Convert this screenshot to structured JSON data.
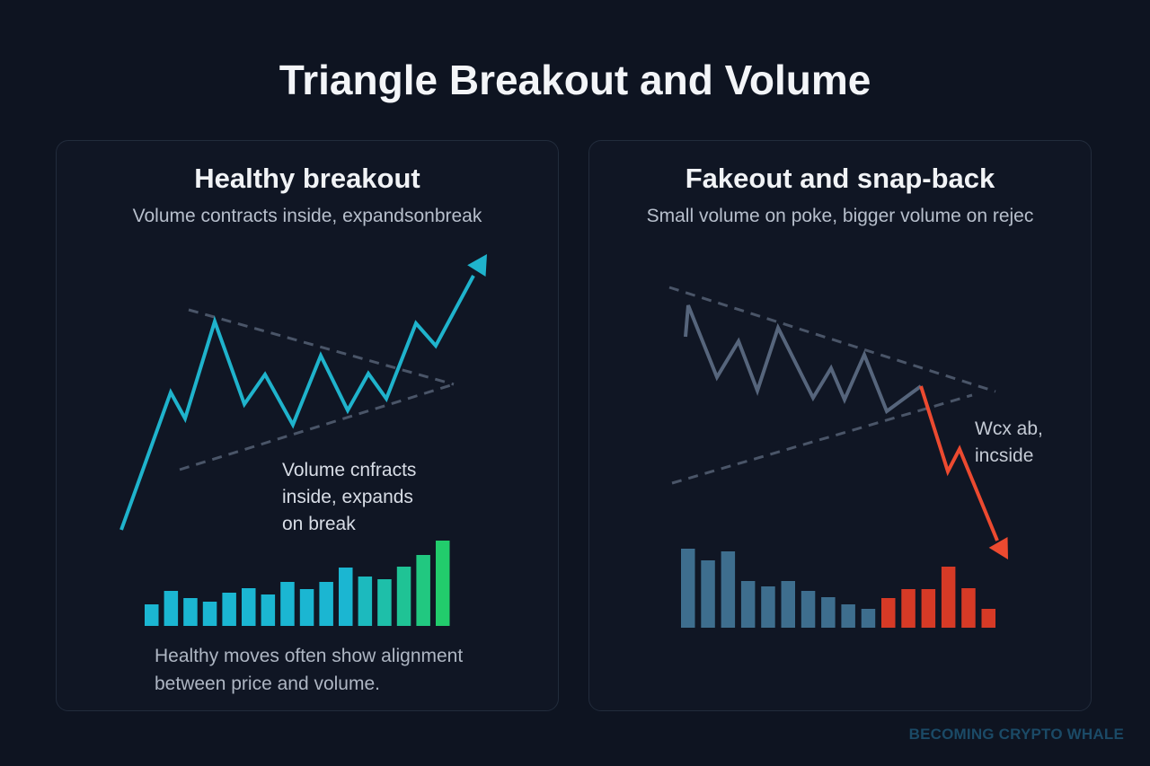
{
  "title": "Triangle Breakout and Volume",
  "panels": [
    {
      "title": "Healthy breakout",
      "subtitle": "Volume contracts inside, expandsonbreak",
      "note_lines": [
        "Volume cnfracts",
        "inside, expands",
        "on break"
      ],
      "caption_lines": [
        "Healthy moves often show alignment",
        "between price and volume."
      ],
      "price_color": "#1fb3cc",
      "volume": [
        24,
        39,
        31,
        27,
        37,
        42,
        35,
        49,
        41,
        49,
        65,
        55,
        52,
        66,
        79,
        95
      ],
      "volume_color_start": "#1bb6d2",
      "volume_color_end": "#22cc6c"
    },
    {
      "title": "Fakeout and snap-back",
      "subtitle": "Small volume on poke, bigger volume on rejec",
      "note_lines": [
        "Wcx ab,",
        "incside"
      ],
      "price_color": "#56657c",
      "breakdown_color": "#ec4a30",
      "volume": [
        88,
        75,
        85,
        52,
        46,
        52,
        41,
        34,
        26,
        21,
        33,
        43,
        43,
        68,
        44,
        21
      ],
      "volume_colors": [
        "#3e6e8e",
        "#3e6e8e",
        "#3e6e8e",
        "#3e6e8e",
        "#3e6e8e",
        "#3e6e8e",
        "#3e6e8e",
        "#3e6e8e",
        "#3e6e8e",
        "#3e6e8e",
        "#d63a26",
        "#d63a26",
        "#d63a26",
        "#d63a26",
        "#d63a26",
        "#d63a26"
      ]
    }
  ],
  "watermark": "BECOMING CRYPTO WHALE"
}
